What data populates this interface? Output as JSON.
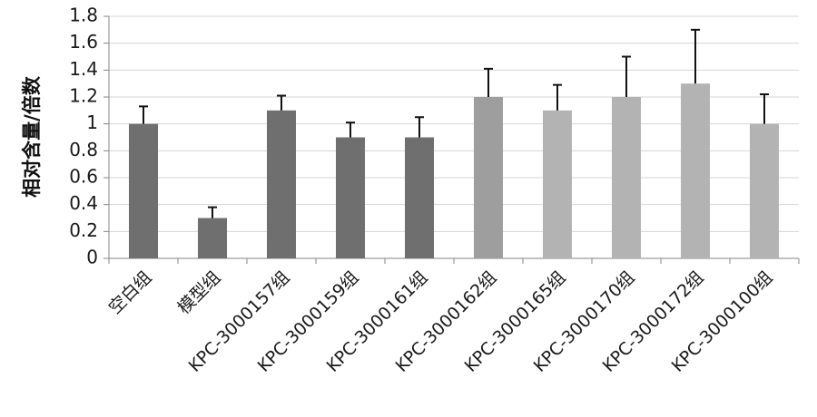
{
  "chart_data": {
    "type": "bar",
    "title": "",
    "xlabel": "",
    "ylabel": "相对含量/倍数",
    "ylim": [
      0,
      1.8
    ],
    "yticks": [
      "0",
      "0.2",
      "0.4",
      "0.6",
      "0.8",
      "1",
      "1.2",
      "1.4",
      "1.6",
      "1.8"
    ],
    "grid": true,
    "legend": "none",
    "categories": [
      "空白组",
      "模型组",
      "KPC-3000157组",
      "KPC-3000159组",
      "KPC-3000161组",
      "KPC-3000162组",
      "KPC-3000165组",
      "KPC-3000170组",
      "KPC-3000172组",
      "KPC-3000100组"
    ],
    "values": [
      1.0,
      0.3,
      1.1,
      0.9,
      0.9,
      1.2,
      1.1,
      1.2,
      1.3,
      1.0
    ],
    "errors": [
      0.13,
      0.08,
      0.11,
      0.11,
      0.15,
      0.21,
      0.19,
      0.3,
      0.4,
      0.22
    ],
    "bar_colors": [
      "#6f6f6f",
      "#6f6f6f",
      "#6f6f6f",
      "#6f6f6f",
      "#6f6f6f",
      "#9e9e9e",
      "#b3b3b3",
      "#b3b3b3",
      "#b3b3b3",
      "#b3b3b3"
    ],
    "error_bar_color": "#111111"
  }
}
